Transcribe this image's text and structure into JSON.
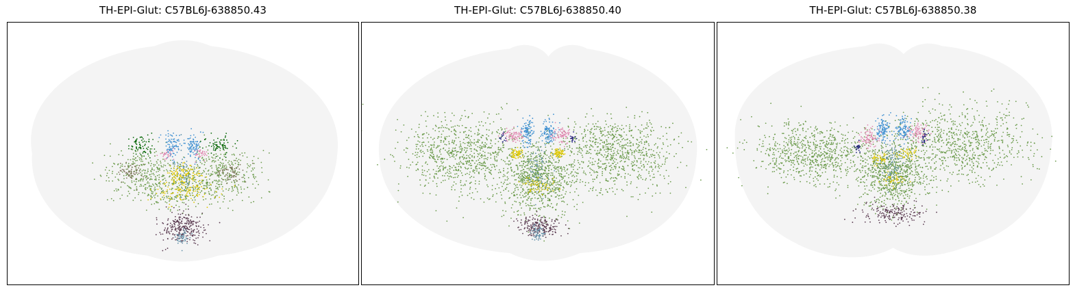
{
  "chart_data": [
    {
      "type": "scatter",
      "title": "TH-EPI-Glut: C57BL6J-638850.43",
      "xlabel": "",
      "ylabel": "",
      "grid": false,
      "ticks": false,
      "background_color": "#f4f4f4",
      "clusters": [
        {
          "color": "#6a9a4a",
          "count": 900,
          "regions": [
            [
              -0.12,
              0.06,
              0.1,
              0.1
            ],
            [
              0.12,
              0.06,
              0.1,
              0.1
            ],
            [
              0.0,
              0.1,
              0.11,
              0.09
            ]
          ]
        },
        {
          "color": "#006400",
          "count": 140,
          "regions": [
            [
              -0.12,
              -0.05,
              0.04,
              0.04
            ],
            [
              0.1,
              -0.05,
              0.04,
              0.04
            ]
          ]
        },
        {
          "color": "#7a6f55",
          "count": 120,
          "regions": [
            [
              -0.15,
              0.05,
              0.04,
              0.04
            ],
            [
              0.14,
              0.05,
              0.04,
              0.04
            ]
          ]
        },
        {
          "color": "#3d8fd1",
          "count": 170,
          "regions": [
            [
              -0.03,
              -0.05,
              0.02,
              0.05
            ],
            [
              0.03,
              -0.05,
              0.02,
              0.05
            ]
          ]
        },
        {
          "color": "#e0c800",
          "count": 220,
          "regions": [
            [
              0.0,
              0.12,
              0.1,
              0.05
            ],
            [
              0.0,
              0.06,
              0.05,
              0.04
            ]
          ]
        },
        {
          "color": "#5a3a50",
          "count": 260,
          "regions": [
            [
              0.0,
              0.26,
              0.06,
              0.06
            ]
          ]
        },
        {
          "color": "#5f8fa8",
          "count": 90,
          "regions": [
            [
              0.0,
              0.04,
              0.03,
              0.08
            ],
            [
              0.0,
              0.3,
              0.02,
              0.03
            ]
          ]
        },
        {
          "color": "#e088b0",
          "count": 60,
          "regions": [
            [
              -0.05,
              -0.02,
              0.02,
              0.02
            ],
            [
              0.05,
              -0.02,
              0.02,
              0.02
            ]
          ]
        }
      ]
    },
    {
      "type": "scatter",
      "title": "TH-EPI-Glut: C57BL6J-638850.40",
      "xlabel": "",
      "ylabel": "",
      "grid": false,
      "ticks": false,
      "background_color": "#f4f4f4",
      "clusters": [
        {
          "color": "#6a9a4a",
          "count": 2400,
          "regions": [
            [
              -0.22,
              0.02,
              0.17,
              0.14
            ],
            [
              0.22,
              0.02,
              0.17,
              0.14
            ],
            [
              0.0,
              0.12,
              0.1,
              0.14
            ]
          ]
        },
        {
          "color": "#3d8fd1",
          "count": 200,
          "regions": [
            [
              -0.03,
              -0.06,
              0.02,
              0.05
            ],
            [
              0.03,
              -0.06,
              0.02,
              0.05
            ]
          ]
        },
        {
          "color": "#e088b0",
          "count": 150,
          "regions": [
            [
              -0.07,
              -0.05,
              0.03,
              0.03
            ],
            [
              0.07,
              -0.05,
              0.03,
              0.03
            ]
          ]
        },
        {
          "color": "#e0c800",
          "count": 180,
          "regions": [
            [
              0.0,
              0.14,
              0.05,
              0.03
            ],
            [
              -0.06,
              0.02,
              0.02,
              0.02
            ],
            [
              0.06,
              0.02,
              0.02,
              0.02
            ]
          ]
        },
        {
          "color": "#5a3a50",
          "count": 200,
          "regions": [
            [
              0.0,
              0.3,
              0.06,
              0.04
            ]
          ]
        },
        {
          "color": "#5f8fa8",
          "count": 110,
          "regions": [
            [
              0.0,
              0.08,
              0.03,
              0.1
            ],
            [
              0.0,
              0.32,
              0.02,
              0.03
            ]
          ]
        },
        {
          "color": "#1a1a7a",
          "count": 30,
          "regions": [
            [
              -0.1,
              -0.04,
              0.01,
              0.02
            ],
            [
              0.1,
              -0.04,
              0.01,
              0.02
            ]
          ]
        }
      ]
    },
    {
      "type": "scatter",
      "title": "TH-EPI-Glut: C57BL6J-638850.38",
      "xlabel": "",
      "ylabel": "",
      "grid": false,
      "ticks": false,
      "background_color": "#f4f4f4",
      "clusters": [
        {
          "color": "#6a9a4a",
          "count": 2300,
          "regions": [
            [
              -0.22,
              0.02,
              0.17,
              0.11
            ],
            [
              0.2,
              -0.02,
              0.19,
              0.14
            ],
            [
              0.0,
              0.1,
              0.1,
              0.12
            ]
          ]
        },
        {
          "color": "#3d8fd1",
          "count": 200,
          "regions": [
            [
              -0.03,
              -0.07,
              0.02,
              0.05
            ],
            [
              0.03,
              -0.07,
              0.02,
              0.05
            ]
          ]
        },
        {
          "color": "#e088b0",
          "count": 160,
          "regions": [
            [
              -0.07,
              -0.04,
              0.03,
              0.04
            ],
            [
              0.07,
              -0.06,
              0.03,
              0.03
            ]
          ]
        },
        {
          "color": "#e0c800",
          "count": 120,
          "regions": [
            [
              -0.04,
              0.04,
              0.03,
              0.02
            ],
            [
              0.04,
              0.02,
              0.03,
              0.02
            ],
            [
              0.0,
              0.12,
              0.03,
              0.03
            ]
          ]
        },
        {
          "color": "#5a3a50",
          "count": 170,
          "regions": [
            [
              0.0,
              0.25,
              0.09,
              0.04
            ]
          ]
        },
        {
          "color": "#5f8fa8",
          "count": 70,
          "regions": [
            [
              0.0,
              0.06,
              0.03,
              0.08
            ]
          ]
        },
        {
          "color": "#1a1a7a",
          "count": 40,
          "regions": [
            [
              0.09,
              -0.04,
              0.01,
              0.03
            ],
            [
              -0.1,
              0.0,
              0.01,
              0.02
            ]
          ]
        }
      ]
    }
  ]
}
